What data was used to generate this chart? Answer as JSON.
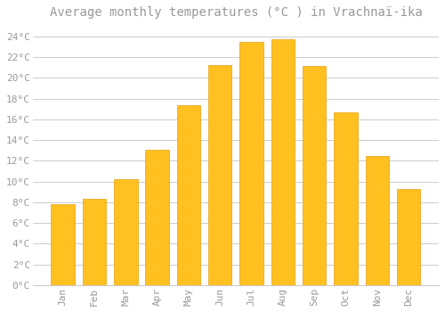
{
  "title": "Average monthly temperatures (°C ) in Vrachnaï-ika",
  "months": [
    "Jan",
    "Feb",
    "Mar",
    "Apr",
    "May",
    "Jun",
    "Jul",
    "Aug",
    "Sep",
    "Oct",
    "Nov",
    "Dec"
  ],
  "values": [
    7.8,
    8.3,
    10.2,
    13.1,
    17.4,
    21.2,
    23.5,
    23.7,
    21.1,
    16.7,
    12.5,
    9.3
  ],
  "bar_color": "#FFC020",
  "bar_edge_color": "#E8A010",
  "background_color": "#FFFFFF",
  "grid_color": "#CCCCCC",
  "text_color": "#999999",
  "ylim": [
    0,
    25
  ],
  "yticks": [
    0,
    2,
    4,
    6,
    8,
    10,
    12,
    14,
    16,
    18,
    20,
    22,
    24
  ],
  "title_fontsize": 10,
  "tick_fontsize": 8
}
